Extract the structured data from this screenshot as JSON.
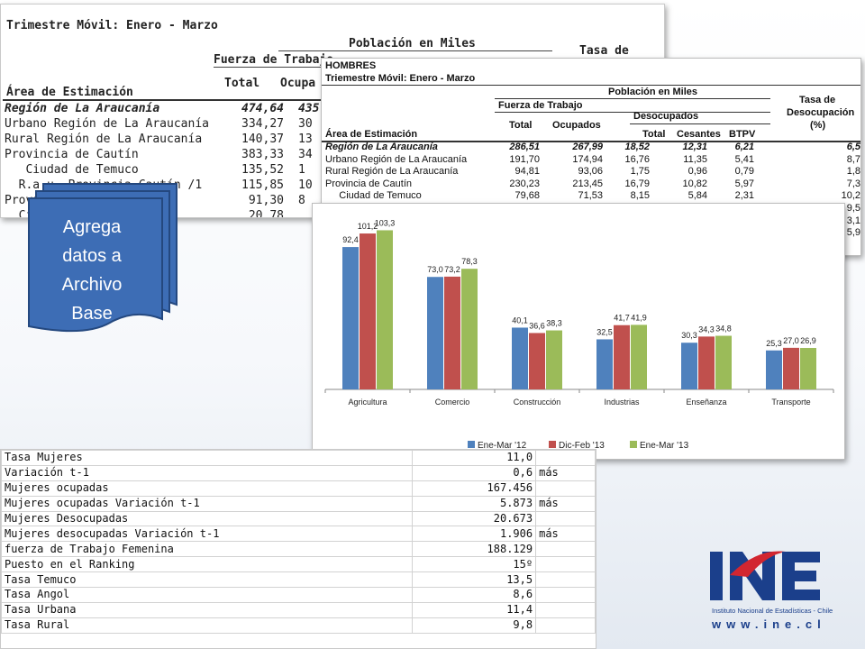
{
  "panel_back": {
    "title": "Trimestre Móvil: Enero - Marzo",
    "header_poblacion": "Población en Miles",
    "header_tasa_line1": "Tasa de",
    "header_tasa_line2": "",
    "header_fuerza": "Fuerza de Trabajo",
    "header_area": "Área de Estimación",
    "header_total": "Total",
    "header_ocupados": "Ocupa",
    "rows": [
      {
        "name": "Región de La Araucanía",
        "total": "474,64",
        "ocup": "435"
      },
      {
        "name": "Urbano Región de La Araucanía",
        "total": "334,27",
        "ocup": "30"
      },
      {
        "name": "Rural Región de La Araucanía",
        "total": "140,37",
        "ocup": "13"
      },
      {
        "name": "Provincia de Cautín",
        "total": "383,33",
        "ocup": "34"
      },
      {
        "name": "   Ciudad de Temuco",
        "total": "135,52",
        "ocup": "1"
      },
      {
        "name": "  R.a.u. Provincia Cautín /1",
        "total": "115,85",
        "ocup": "10"
      },
      {
        "name": "Provincia Malleco",
        "total": "91,30",
        "ocup": "8"
      },
      {
        "name": "  Ciudad Angol",
        "total": "20,78",
        "ocup": ""
      }
    ]
  },
  "shape": {
    "line1": "Agrega",
    "line2": "datos a",
    "line3": "Archivo",
    "line4": "Base"
  },
  "panel_hombres": {
    "title1": "HOMBRES",
    "title2": "Triemestre Móvil: Enero - Marzo",
    "header_poblacion": "Población en Miles",
    "header_fuerza": "Fuerza de Trabajo",
    "header_tasa1": "Tasa de",
    "header_tasa2": "Desocupación",
    "header_tasa3": "(%)",
    "header_desocupados": "Desocupados",
    "header_total": "Total",
    "header_ocupados": "Ocupados",
    "header_total2": "Total",
    "header_cesantes": "Cesantes",
    "header_btpv": "BTPV",
    "header_area": "Área de Estimación",
    "rows": [
      {
        "name": "Región de La Araucanía",
        "total": "286,51",
        "ocup": "267,99",
        "desoc": "18,52",
        "ces": "12,31",
        "btpv": "6,21",
        "tasa": "6,5"
      },
      {
        "name": "Urbano Región de La Araucanía",
        "total": "191,70",
        "ocup": "174,94",
        "desoc": "16,76",
        "ces": "11,35",
        "btpv": "5,41",
        "tasa": "8,7"
      },
      {
        "name": "Rural Región de La Araucanía",
        "total": "94,81",
        "ocup": "93,06",
        "desoc": "1,75",
        "ces": "0,96",
        "btpv": "0,79",
        "tasa": "1,8"
      },
      {
        "name": "Provincia de Cautín",
        "total": "230,23",
        "ocup": "213,45",
        "desoc": "16,79",
        "ces": "10,82",
        "btpv": "5,97",
        "tasa": "7,3"
      },
      {
        "name": "     Ciudad de Temuco",
        "total": "79,68",
        "ocup": "71,53",
        "desoc": "8,15",
        "ces": "5,84",
        "btpv": "2,31",
        "tasa": "10,2"
      },
      {
        "name": "",
        "total": "",
        "ocup": "",
        "desoc": "",
        "ces": "",
        "btpv": "",
        "tasa": "9,5"
      },
      {
        "name": "",
        "total": "",
        "ocup": "",
        "desoc": "",
        "ces": "",
        "btpv": "",
        "tasa": "3,1"
      },
      {
        "name": "",
        "total": "",
        "ocup": "",
        "desoc": "",
        "ces": "",
        "btpv": "",
        "tasa": "5,9"
      }
    ]
  },
  "chart_data": {
    "type": "bar",
    "categories": [
      "Agricultura",
      "Comercio",
      "Construcción",
      "Industrias",
      "Enseñanza",
      "Transporte"
    ],
    "series": [
      {
        "name": "Ene-Mar '12",
        "color": "#4f81bd",
        "values": [
          92.4,
          73.0,
          40.1,
          32.5,
          30.3,
          25.3
        ],
        "labels": [
          "92,4",
          "73,0",
          "40,1",
          "32,5",
          "30,3",
          "25,3"
        ]
      },
      {
        "name": "Dic-Feb '13",
        "color": "#c0504d",
        "values": [
          101.2,
          73.2,
          36.6,
          41.7,
          34.3,
          27.0
        ],
        "labels": [
          "101,2",
          "73,2",
          "36,6",
          "41,7",
          "34,3",
          "27,0"
        ]
      },
      {
        "name": "Ene-Mar '13",
        "color": "#9bbb59",
        "values": [
          103.3,
          78.3,
          38.3,
          41.9,
          34.8,
          26.9
        ],
        "labels": [
          "103,3",
          "78,3",
          "38,3",
          "41,9",
          "34,8",
          "26,9"
        ]
      }
    ],
    "ylim": [
      0,
      110
    ],
    "grid": false,
    "legend": "bottom"
  },
  "women_table": {
    "rows": [
      {
        "label": "Tasa Mujeres",
        "value": "11,0",
        "note": ""
      },
      {
        "label": "Variación t-1",
        "value": "0,6",
        "note": "más"
      },
      {
        "label": "Mujeres ocupadas",
        "value": "167.456",
        "note": ""
      },
      {
        "label": "Mujeres ocupadas Variación t-1",
        "value": "5.873",
        "note": "más"
      },
      {
        "label": "Mujeres Desocupadas",
        "value": "20.673",
        "note": ""
      },
      {
        "label": "Mujeres desocupadas Variación t-1",
        "value": "1.906",
        "note": "más"
      },
      {
        "label": "fuerza de Trabajo Femenina",
        "value": "188.129",
        "note": ""
      },
      {
        "label": "Puesto en el Ranking",
        "value": "15º",
        "note": ""
      },
      {
        "label": "Tasa Temuco",
        "value": "13,5",
        "note": ""
      },
      {
        "label": "Tasa Angol",
        "value": "8,6",
        "note": ""
      },
      {
        "label": "Tasa Urbana",
        "value": "11,4",
        "note": ""
      },
      {
        "label": "Tasa Rural",
        "value": "9,8",
        "note": ""
      }
    ]
  },
  "logo": {
    "letters": "INE",
    "subtitle": "Instituto Nacional de Estadísticas - Chile",
    "website": "www.ine.cl"
  },
  "colors": {
    "shape_fill": "#3d6db5",
    "logo_blue": "#1b3f8b",
    "logo_red": "#d22630"
  }
}
